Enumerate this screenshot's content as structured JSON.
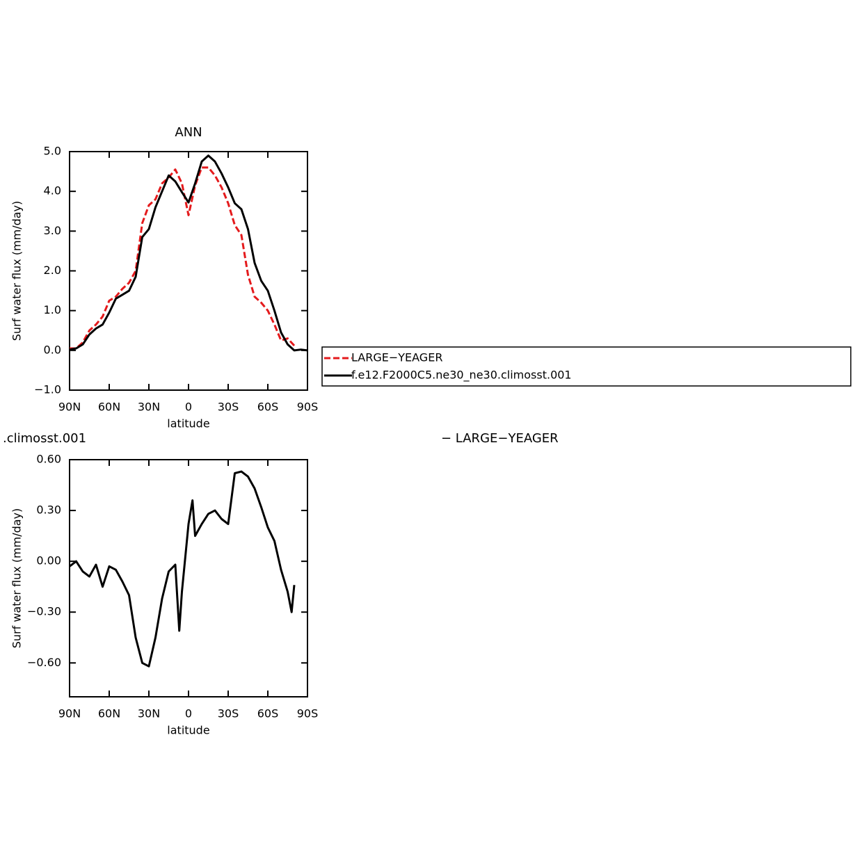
{
  "chart_data": [
    {
      "type": "line",
      "title": "ANN",
      "xlabel": "latitude",
      "ylabel": "Surf water flux (mm/day)",
      "x": [
        90,
        85,
        80,
        75,
        70,
        65,
        60,
        55,
        50,
        45,
        40,
        35,
        30,
        25,
        20,
        15,
        10,
        5,
        0,
        -5,
        -10,
        -15,
        -20,
        -25,
        -30,
        -35,
        -40,
        -45,
        -50,
        -55,
        -60,
        -65,
        -70,
        -75,
        -80,
        -85,
        -90
      ],
      "series": [
        {
          "name": "LARGE−YEAGER",
          "color": "#e41a1c",
          "dash": true,
          "values": [
            0.05,
            0.05,
            0.2,
            0.5,
            0.65,
            0.85,
            1.25,
            1.35,
            1.55,
            1.7,
            2.0,
            3.2,
            3.65,
            3.8,
            4.2,
            4.35,
            4.55,
            4.2,
            3.4,
            4.15,
            4.6,
            4.6,
            4.4,
            4.1,
            3.7,
            3.15,
            2.9,
            1.9,
            1.35,
            1.2,
            1.0,
            0.65,
            0.25,
            0.3,
            0.12,
            null,
            null
          ]
        },
        {
          "name": "f.e12.F2000C5.ne30_ne30.climosst.001",
          "color": "#000000",
          "dash": false,
          "values": [
            0.02,
            0.05,
            0.15,
            0.4,
            0.55,
            0.65,
            0.95,
            1.3,
            1.4,
            1.5,
            1.85,
            2.85,
            3.05,
            3.6,
            4.0,
            4.4,
            4.25,
            3.98,
            3.72,
            4.2,
            4.75,
            4.9,
            4.75,
            4.45,
            4.1,
            3.7,
            3.55,
            3.05,
            2.2,
            1.75,
            1.5,
            1.0,
            0.45,
            0.15,
            0.0,
            0.02,
            0.0
          ]
        }
      ],
      "xlim": [
        90,
        -90
      ],
      "xticks": [
        {
          "value": 90,
          "label": "90N"
        },
        {
          "value": 60,
          "label": "60N"
        },
        {
          "value": 30,
          "label": "30N"
        },
        0,
        {
          "value": -30,
          "label": "30S"
        },
        {
          "value": -60,
          "label": "60S"
        },
        {
          "value": -90,
          "label": "90S"
        }
      ],
      "ylim": [
        -1,
        5
      ],
      "yticks": [
        {
          "value": -1,
          "label": "−1.0"
        },
        {
          "value": 0,
          "label": "0.0"
        },
        {
          "value": 1,
          "label": "1.0"
        },
        {
          "value": 2,
          "label": "2.0"
        },
        {
          "value": 3,
          "label": "3.0"
        },
        {
          "value": 4,
          "label": "4.0"
        },
        {
          "value": 5,
          "label": "5.0"
        }
      ],
      "legend": "right"
    },
    {
      "type": "line",
      "title_left": ".climosst.001",
      "title_right": "− LARGE−YEAGER",
      "xlabel": "latitude",
      "ylabel": "Surf water flux (mm/day)",
      "x": [
        90,
        85,
        80,
        75,
        70,
        65,
        60,
        55,
        50,
        45,
        40,
        35,
        30,
        25,
        20,
        15,
        10,
        7,
        5,
        0,
        -3,
        -5,
        -10,
        -15,
        -20,
        -25,
        -30,
        -35,
        -40,
        -45,
        -50,
        -55,
        -60,
        -65,
        -70,
        -75,
        -78,
        -80
      ],
      "series": [
        {
          "color": "#000000",
          "values": [
            -0.03,
            0.0,
            -0.06,
            -0.09,
            -0.02,
            -0.15,
            -0.03,
            -0.05,
            -0.12,
            -0.2,
            -0.45,
            -0.6,
            -0.62,
            -0.45,
            -0.22,
            -0.06,
            -0.02,
            -0.41,
            -0.18,
            0.22,
            0.36,
            0.15,
            0.22,
            0.28,
            0.3,
            0.25,
            0.22,
            0.52,
            0.53,
            0.5,
            0.43,
            0.32,
            0.2,
            0.12,
            -0.05,
            -0.18,
            -0.3,
            -0.14
          ]
        }
      ],
      "xlim": [
        90,
        -90
      ],
      "xticks": [
        {
          "value": 90,
          "label": "90N"
        },
        {
          "value": 60,
          "label": "60N"
        },
        {
          "value": 30,
          "label": "30N"
        },
        0,
        {
          "value": -30,
          "label": "30S"
        },
        {
          "value": -60,
          "label": "60S"
        },
        {
          "value": -90,
          "label": "90S"
        }
      ],
      "ylim": [
        -0.8,
        0.6
      ],
      "yticks": [
        {
          "value": -0.6,
          "label": "−0.60"
        },
        {
          "value": -0.3,
          "label": "−0.30"
        },
        {
          "value": 0,
          "label": "0.00"
        },
        {
          "value": 0.3,
          "label": "0.30"
        },
        {
          "value": 0.6,
          "label": "0.60"
        }
      ]
    }
  ]
}
